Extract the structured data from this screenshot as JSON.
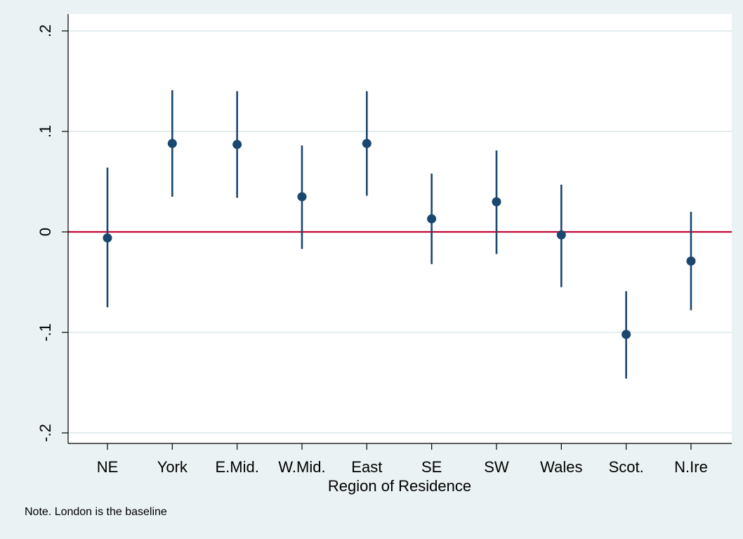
{
  "chart_data": {
    "type": "scatter",
    "subtype": "point-estimate-with-confidence-intervals",
    "title": "",
    "xlabel": "Region of Residence",
    "ylabel": "",
    "note": "Note. London is the baseline",
    "categories": [
      "NE",
      "York",
      "E.Mid.",
      "W.Mid.",
      "East",
      "SE",
      "SW",
      "Wales",
      "Scot.",
      "N.Ire"
    ],
    "estimates": [
      -0.006,
      0.088,
      0.087,
      0.035,
      0.088,
      0.013,
      0.03,
      -0.003,
      -0.102,
      -0.029
    ],
    "ci_lower": [
      -0.075,
      0.035,
      0.034,
      -0.017,
      0.036,
      -0.032,
      -0.022,
      -0.055,
      -0.146,
      -0.078
    ],
    "ci_upper": [
      0.064,
      0.141,
      0.14,
      0.086,
      0.14,
      0.058,
      0.081,
      0.047,
      -0.059,
      0.02
    ],
    "ylim": [
      -0.2,
      0.2
    ],
    "yticks": [
      -0.2,
      -0.1,
      0,
      0.1,
      0.2
    ],
    "ytick_labels": [
      "-.2",
      "-.1",
      "0",
      ".1",
      ".2"
    ],
    "reference_line": 0,
    "grid": true,
    "colors": {
      "background": "#eaf2f3",
      "plot_area": "#ffffff",
      "grid": "#e3ecee",
      "marker": "#1a476f",
      "reference_line": "#c10534",
      "axis": "#000000"
    }
  }
}
